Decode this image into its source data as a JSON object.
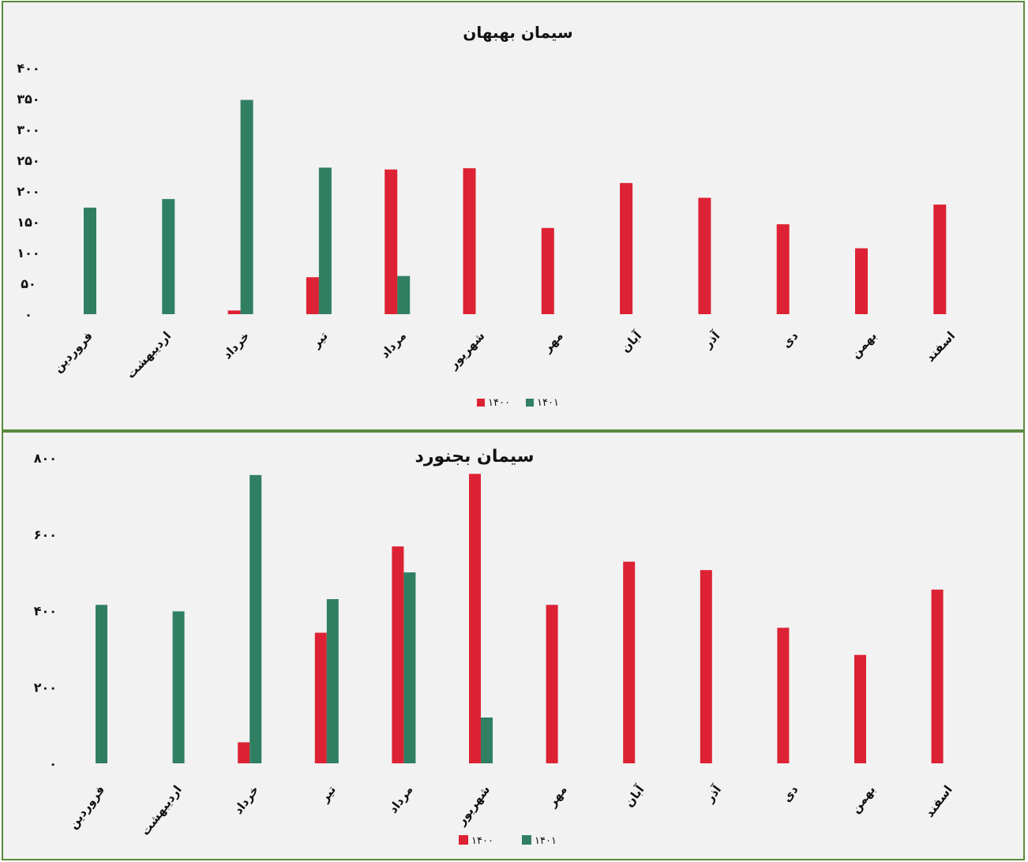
{
  "colors": {
    "s1400": "#dc2234",
    "s1401": "#317f63"
  },
  "chart_data": [
    {
      "type": "bar",
      "title": "سیمان بهبهان",
      "categories": [
        "فروردین",
        "اردیبهشت",
        "خرداد",
        "تیر",
        "مرداد",
        "شهریور",
        "مهر",
        "آبان",
        "آذر",
        "دی",
        "بهمن",
        "اسفند"
      ],
      "series": [
        {
          "name": "۱۴۰۰",
          "values": [
            null,
            null,
            6,
            60,
            235,
            237,
            140,
            213,
            189,
            146,
            107,
            178
          ]
        },
        {
          "name": "۱۴۰۱",
          "values": [
            173,
            187,
            348,
            238,
            62,
            null,
            null,
            null,
            null,
            null,
            null,
            null
          ]
        }
      ],
      "ylim": [
        0,
        400
      ],
      "yticks": [
        "۰",
        "۵۰",
        "۱۰۰",
        "۱۵۰",
        "۲۰۰",
        "۲۵۰",
        "۳۰۰",
        "۳۵۰",
        "۴۰۰"
      ],
      "legend": "bottom-center",
      "grid": false
    },
    {
      "type": "bar",
      "title": "سیمان بجنورد",
      "categories": [
        "فروردین",
        "اردیبهشت",
        "خرداد",
        "تیر",
        "مرداد",
        "شهریور",
        "مهر",
        "آبان",
        "آذر",
        "دی",
        "بهمن",
        "اسفند"
      ],
      "series": [
        {
          "name": "۱۴۰۰",
          "values": [
            null,
            null,
            55,
            342,
            568,
            758,
            415,
            528,
            506,
            355,
            284,
            455
          ]
        },
        {
          "name": "۱۴۰۱",
          "values": [
            415,
            398,
            755,
            430,
            500,
            120,
            null,
            null,
            null,
            null,
            null,
            null
          ]
        }
      ],
      "ylim": [
        0,
        800
      ],
      "yticks": [
        "۰",
        "۲۰۰",
        "۴۰۰",
        "۶۰۰",
        "۸۰۰"
      ],
      "legend": "bottom-center",
      "grid": false
    }
  ]
}
